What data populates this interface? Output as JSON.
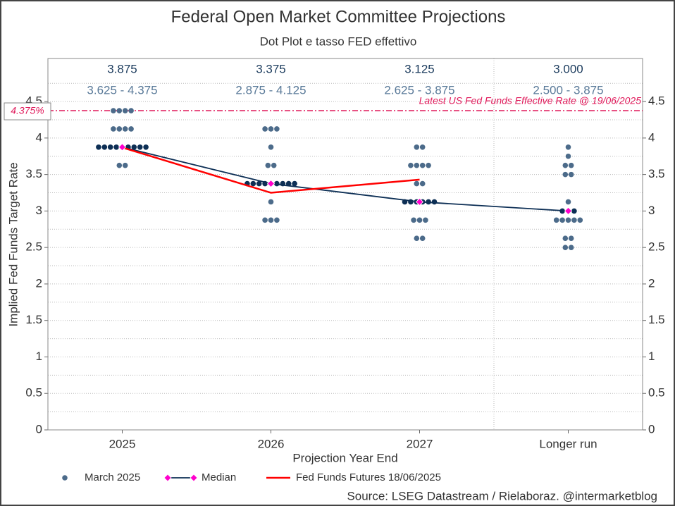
{
  "chart_data": {
    "type": "dotplot",
    "title": "Federal Open Market Committee Projections",
    "subtitle": "Dot Plot e tasso FED effettivo",
    "x_label": "Projection Year End",
    "y_label": "Implied Fed Funds Target Rate",
    "source": "Source: LSEG Datastream /  Rielaboraz. @intermarketblog",
    "categories": [
      "2025",
      "2026",
      "2027",
      "Longer run"
    ],
    "range_labels": [
      "3.625 - 4.375",
      "2.875 - 4.125",
      "2.625 - 3.875",
      "2.500 - 3.875"
    ],
    "ylim": [
      0,
      5.09
    ],
    "yticks": [
      0,
      0.5,
      1,
      1.5,
      2,
      2.5,
      3,
      3.5,
      4,
      4.5
    ],
    "yminorticks": [
      0.25,
      0.75,
      1.25,
      1.75,
      2.25,
      2.75,
      3.25,
      3.75,
      4.25,
      4.75
    ],
    "grid": true,
    "reference_line": {
      "value": 4.375,
      "label": "4.375%",
      "annotation": "Latest US Fed Funds Effective Rate @ 19/06/2025",
      "color": "#e0195a"
    },
    "series": [
      {
        "name": "March 2025",
        "color": "#4c6b8a",
        "highlight_color": "#0d2f55",
        "values": [
          [
            4.375,
            4.375,
            4.375,
            4.375,
            4.125,
            4.125,
            4.125,
            4.125,
            3.875,
            3.875,
            3.875,
            3.875,
            3.875,
            3.875,
            3.875,
            3.875,
            3.875,
            3.625,
            3.625
          ],
          [
            4.125,
            4.125,
            4.125,
            3.875,
            3.625,
            3.625,
            3.375,
            3.375,
            3.375,
            3.375,
            3.375,
            3.375,
            3.375,
            3.375,
            3.375,
            3.125,
            2.875,
            2.875,
            2.875
          ],
          [
            3.875,
            3.875,
            3.625,
            3.625,
            3.625,
            3.625,
            3.375,
            3.375,
            3.125,
            3.125,
            3.125,
            3.125,
            3.125,
            3.125,
            2.875,
            2.875,
            2.875,
            2.625,
            2.625
          ],
          [
            3.875,
            3.75,
            3.625,
            3.625,
            3.5,
            3.5,
            3.125,
            3.0,
            3.0,
            3.0,
            2.875,
            2.875,
            2.875,
            2.875,
            2.875,
            2.625,
            2.625,
            2.5,
            2.5
          ]
        ]
      },
      {
        "name": "Median",
        "color": "#0d2f55",
        "marker_color": "#ff00cc",
        "values": [
          3.875,
          3.375,
          3.125,
          3.0
        ],
        "value_labels": [
          "3.875",
          "3.375",
          "3.125",
          "3.000"
        ]
      },
      {
        "name": "Fed Funds Futures 18/06/2025",
        "color": "#ff0000",
        "values": [
          3.87,
          3.25,
          3.43,
          null
        ]
      }
    ]
  }
}
